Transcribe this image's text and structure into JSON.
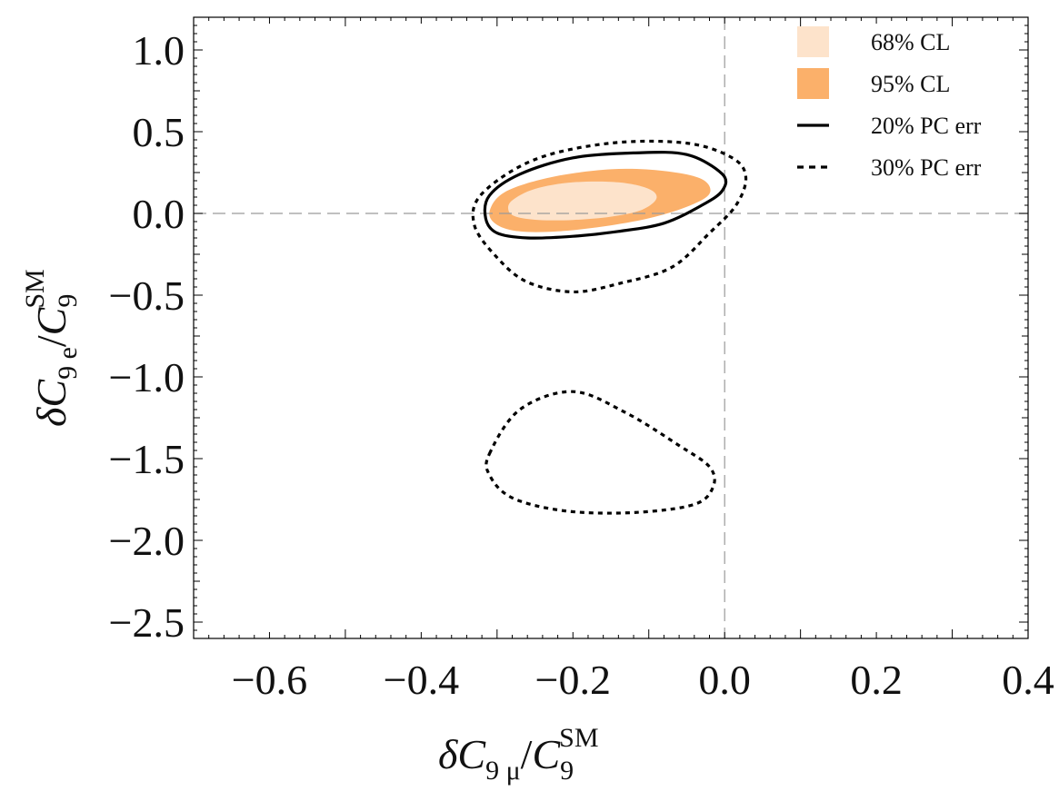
{
  "chart_data": {
    "type": "contour",
    "xlabel": {
      "delta": "δ",
      "base": "C",
      "sub": "9 μ",
      "slash": "/",
      "den_base": "C",
      "den_sub": "9",
      "den_sup": "SM"
    },
    "ylabel": {
      "delta": "δ",
      "base": "C",
      "sub": "9 e",
      "slash": "/",
      "den_base": "C",
      "den_sub": "9",
      "den_sup": "SM"
    },
    "xlim": [
      -0.7,
      0.4
    ],
    "ylim": [
      -2.6,
      1.2
    ],
    "x_ticks": [
      -0.6,
      -0.4,
      -0.2,
      0.0,
      0.2,
      0.4
    ],
    "x_tick_labels": [
      "−0.6",
      "−0.4",
      "−0.2",
      "0.0",
      "0.2",
      "0.4"
    ],
    "y_ticks": [
      1.0,
      0.5,
      0.0,
      -0.5,
      -1.0,
      -1.5,
      -2.0,
      -2.5
    ],
    "y_tick_labels": [
      "1.0",
      "0.5",
      "0.0",
      "−0.5",
      "−1.0",
      "−1.5",
      "−2.0",
      "−2.5"
    ],
    "reference_lines": {
      "x": 0.0,
      "y": 0.0,
      "style": "dashed",
      "color": "#9a9a9a"
    },
    "legend": {
      "position": "top-right",
      "entries": [
        {
          "label": "68% CL",
          "kind": "patch",
          "color": "#fde3cb"
        },
        {
          "label": "95% CL",
          "kind": "patch",
          "color": "#fbb06a"
        },
        {
          "label": "20% PC err",
          "kind": "solid-line",
          "color": "#000000"
        },
        {
          "label": "30% PC err",
          "kind": "dashed-line",
          "color": "#000000"
        }
      ]
    },
    "regions": [
      {
        "name": "95% CL",
        "fill": "#fbb06a",
        "points": [
          [
            -0.31,
            0.01
          ],
          [
            -0.3,
            -0.07
          ],
          [
            -0.27,
            -0.11
          ],
          [
            -0.22,
            -0.11
          ],
          [
            -0.16,
            -0.08
          ],
          [
            -0.1,
            -0.03
          ],
          [
            -0.05,
            0.04
          ],
          [
            -0.02,
            0.12
          ],
          [
            -0.03,
            0.21
          ],
          [
            -0.08,
            0.26
          ],
          [
            -0.15,
            0.27
          ],
          [
            -0.23,
            0.22
          ],
          [
            -0.29,
            0.13
          ]
        ]
      },
      {
        "name": "68% CL",
        "fill": "#fde3cb",
        "points": [
          [
            -0.285,
            0.02
          ],
          [
            -0.275,
            -0.02
          ],
          [
            -0.245,
            -0.04
          ],
          [
            -0.2,
            -0.04
          ],
          [
            -0.15,
            -0.02
          ],
          [
            -0.11,
            0.02
          ],
          [
            -0.09,
            0.09
          ],
          [
            -0.1,
            0.15
          ],
          [
            -0.14,
            0.19
          ],
          [
            -0.2,
            0.19
          ],
          [
            -0.25,
            0.15
          ],
          [
            -0.28,
            0.08
          ]
        ]
      }
    ],
    "contours": [
      {
        "name": "20% PC err",
        "style": "solid",
        "color": "#000000",
        "points": [
          [
            -0.315,
            -0.03
          ],
          [
            -0.3,
            -0.12
          ],
          [
            -0.26,
            -0.15
          ],
          [
            -0.2,
            -0.14
          ],
          [
            -0.14,
            -0.11
          ],
          [
            -0.08,
            -0.06
          ],
          [
            -0.03,
            0.05
          ],
          [
            -0.003,
            0.14
          ],
          [
            -0.003,
            0.24
          ],
          [
            -0.05,
            0.36
          ],
          [
            -0.12,
            0.37
          ],
          [
            -0.2,
            0.34
          ],
          [
            -0.27,
            0.24
          ],
          [
            -0.31,
            0.11
          ]
        ]
      },
      {
        "name": "30% PC err",
        "style": "dashed",
        "color": "#000000",
        "group": "upper",
        "points": [
          [
            -0.33,
            -0.07
          ],
          [
            -0.3,
            -0.27
          ],
          [
            -0.26,
            -0.42
          ],
          [
            -0.2,
            -0.48
          ],
          [
            -0.14,
            -0.43
          ],
          [
            -0.07,
            -0.33
          ],
          [
            -0.02,
            -0.12
          ],
          [
            0.015,
            0.05
          ],
          [
            0.028,
            0.22
          ],
          [
            0.01,
            0.34
          ],
          [
            -0.05,
            0.43
          ],
          [
            -0.15,
            0.43
          ],
          [
            -0.25,
            0.33
          ],
          [
            -0.32,
            0.12
          ]
        ]
      },
      {
        "name": "30% PC err",
        "style": "dashed",
        "color": "#000000",
        "group": "lower",
        "points": [
          [
            -0.31,
            -1.47
          ],
          [
            -0.27,
            -1.2
          ],
          [
            -0.2,
            -1.09
          ],
          [
            -0.13,
            -1.22
          ],
          [
            -0.06,
            -1.42
          ],
          [
            -0.02,
            -1.55
          ],
          [
            -0.015,
            -1.67
          ],
          [
            -0.04,
            -1.78
          ],
          [
            -0.12,
            -1.83
          ],
          [
            -0.21,
            -1.82
          ],
          [
            -0.28,
            -1.74
          ],
          [
            -0.31,
            -1.6
          ]
        ]
      }
    ]
  }
}
